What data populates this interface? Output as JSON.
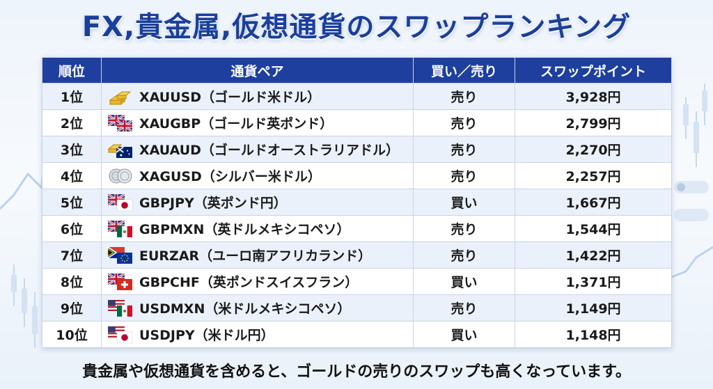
{
  "title": "FX,貴金属,仮想通貨のスワップランキング",
  "table": {
    "headers": [
      "順位",
      "通貨ペア",
      "買い／売り",
      "スワップポイント"
    ],
    "rows": [
      {
        "rank": "1位",
        "icon": "gold-bars-icon",
        "pair": "XAUUSD（ゴールド米ドル）",
        "side": "売り",
        "side_type": "sell",
        "points": "3,928円"
      },
      {
        "rank": "2位",
        "icon": "uk-flag-icon",
        "pair": "XAUGBP（ゴールド英ポンド）",
        "side": "売り",
        "side_type": "sell",
        "points": "2,799円"
      },
      {
        "rank": "3位",
        "icon": "gold-australia-icon",
        "pair": "XAUAUD（ゴールドオーストラリアドル）",
        "side": "売り",
        "side_type": "sell",
        "points": "2,270円"
      },
      {
        "rank": "4位",
        "icon": "silver-coins-icon",
        "pair": "XAGUSD（シルバー米ドル）",
        "side": "売り",
        "side_type": "sell",
        "points": "2,257円"
      },
      {
        "rank": "5位",
        "icon": "uk-japan-flags-icon",
        "pair": "GBPJPY（英ポンド円）",
        "side": "買い",
        "side_type": "buy",
        "points": "1,667円"
      },
      {
        "rank": "6位",
        "icon": "uk-mexico-flags-icon",
        "pair": "GBPMXN（英ドルメキシコペソ）",
        "side": "売り",
        "side_type": "sell",
        "points": "1,544円"
      },
      {
        "rank": "7位",
        "icon": "eu-southafrica-flags-icon",
        "pair": "EURZAR（ユーロ南アフリカランド）",
        "side": "売り",
        "side_type": "sell",
        "points": "1,422円"
      },
      {
        "rank": "8位",
        "icon": "uk-swiss-flags-icon",
        "pair": "GBPCHF（英ポンドスイスフラン）",
        "side": "買い",
        "side_type": "buy",
        "points": "1,371円"
      },
      {
        "rank": "9位",
        "icon": "us-mexico-flags-icon",
        "pair": "USDMXN（米ドルメキシコペソ）",
        "side": "売り",
        "side_type": "sell",
        "points": "1,149円"
      },
      {
        "rank": "10位",
        "icon": "us-japan-flags-icon",
        "pair": "USDJPY（米ドル円）",
        "side": "買い",
        "side_type": "buy",
        "points": "1,148円"
      }
    ]
  },
  "footer": "貴金属や仮想通貨を含めると、ゴールドの売りのスワップも高くなっています。",
  "colors": {
    "header_bg": "#1e3f9e",
    "title": "#1a3f9c",
    "sell": "#d4191c",
    "buy": "#158a2b"
  }
}
